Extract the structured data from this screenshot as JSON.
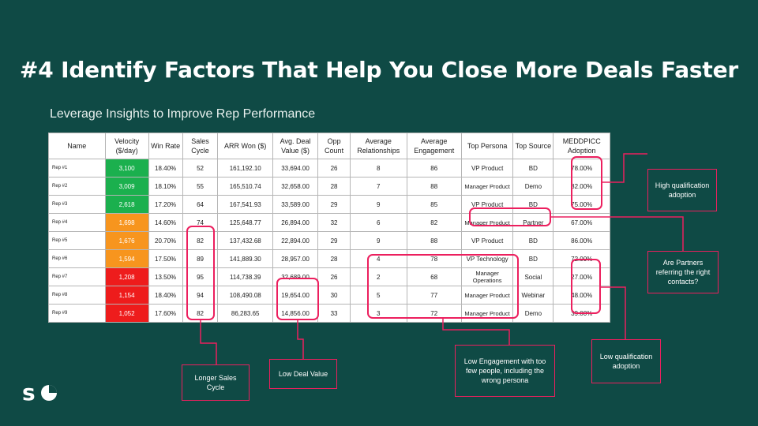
{
  "title": "#4 Identify Factors That Help You Close More Deals Faster",
  "subtitle": "Leverage Insights to Improve Rep Performance",
  "table": {
    "headers": [
      "Name",
      "Velocity ($/day)",
      "Win Rate",
      "Sales Cycle",
      "ARR Won ($)",
      "Avg. Deal Value ($)",
      "Opp Count",
      "Average Relationships",
      "Average Engagement",
      "Top Persona",
      "Top Source",
      "MEDDPICC Adoption"
    ],
    "rows": [
      {
        "name": "Rep #1",
        "velocity": "3,100",
        "velocity_level": "green",
        "win_rate": "18.40%",
        "sales_cycle": "52",
        "arr_won": "161,192.10",
        "avg_deal": "33,694.00",
        "opp_count": "26",
        "relationships": "8",
        "engagement": "86",
        "persona": "VP Product",
        "source": "BD",
        "meddpicc": "78.00%"
      },
      {
        "name": "Rep #2",
        "velocity": "3,009",
        "velocity_level": "green",
        "win_rate": "18.10%",
        "sales_cycle": "55",
        "arr_won": "165,510.74",
        "avg_deal": "32,658.00",
        "opp_count": "28",
        "relationships": "7",
        "engagement": "88",
        "persona": "Manager Product",
        "source": "Demo",
        "meddpicc": "82.00%"
      },
      {
        "name": "Rep #3",
        "velocity": "2,618",
        "velocity_level": "green",
        "win_rate": "17.20%",
        "sales_cycle": "64",
        "arr_won": "167,541.93",
        "avg_deal": "33,589.00",
        "opp_count": "29",
        "relationships": "9",
        "engagement": "85",
        "persona": "VP Product",
        "source": "BD",
        "meddpicc": "75.00%"
      },
      {
        "name": "Rep #4",
        "velocity": "1,698",
        "velocity_level": "orange",
        "win_rate": "14.60%",
        "sales_cycle": "74",
        "arr_won": "125,648.77",
        "avg_deal": "26,894.00",
        "opp_count": "32",
        "relationships": "6",
        "engagement": "82",
        "persona": "Manager Product",
        "source": "Partner",
        "meddpicc": "67.00%"
      },
      {
        "name": "Rep #5",
        "velocity": "1,676",
        "velocity_level": "orange",
        "win_rate": "20.70%",
        "sales_cycle": "82",
        "arr_won": "137,432.68",
        "avg_deal": "22,894.00",
        "opp_count": "29",
        "relationships": "9",
        "engagement": "88",
        "persona": "VP Product",
        "source": "BD",
        "meddpicc": "86.00%"
      },
      {
        "name": "Rep #6",
        "velocity": "1,594",
        "velocity_level": "orange",
        "win_rate": "17.50%",
        "sales_cycle": "89",
        "arr_won": "141,889.30",
        "avg_deal": "28,957.00",
        "opp_count": "28",
        "relationships": "4",
        "engagement": "78",
        "persona": "VP Technology",
        "source": "BD",
        "meddpicc": "72.00%"
      },
      {
        "name": "Rep #7",
        "velocity": "1,208",
        "velocity_level": "red",
        "win_rate": "13.50%",
        "sales_cycle": "95",
        "arr_won": "114,738.39",
        "avg_deal": "32,689.00",
        "opp_count": "26",
        "relationships": "2",
        "engagement": "68",
        "persona": "Manager Operations",
        "source": "Social",
        "meddpicc": "27.00%"
      },
      {
        "name": "Rep #8",
        "velocity": "1,154",
        "velocity_level": "red",
        "win_rate": "18.40%",
        "sales_cycle": "94",
        "arr_won": "108,490.08",
        "avg_deal": "19,654.00",
        "opp_count": "30",
        "relationships": "5",
        "engagement": "77",
        "persona": "Manager Product",
        "source": "Webinar",
        "meddpicc": "48.00%"
      },
      {
        "name": "Rep #9",
        "velocity": "1,052",
        "velocity_level": "red",
        "win_rate": "17.60%",
        "sales_cycle": "82",
        "arr_won": "86,283.65",
        "avg_deal": "14,856.00",
        "opp_count": "33",
        "relationships": "3",
        "engagement": "72",
        "persona": "Manager Product",
        "source": "Demo",
        "meddpicc": "39.00%"
      }
    ]
  },
  "callouts": {
    "high_qualification": "High qualification adoption",
    "partners": "Are Partners referring the right contacts?",
    "low_qualification": "Low qualification adoption",
    "low_engagement": "Low Engagement with too few people, including the wrong persona",
    "low_deal_value": "Low Deal Value",
    "longer_sales_cycle": "Longer Sales Cycle"
  },
  "colors": {
    "background": "#0f4a45",
    "highlight": "#ec1f5e",
    "velocity_green": "#1bb04e",
    "velocity_orange": "#f7951e",
    "velocity_red": "#ee1c1c"
  },
  "logo": {
    "text": "s",
    "icon": "pie-chart-icon"
  }
}
